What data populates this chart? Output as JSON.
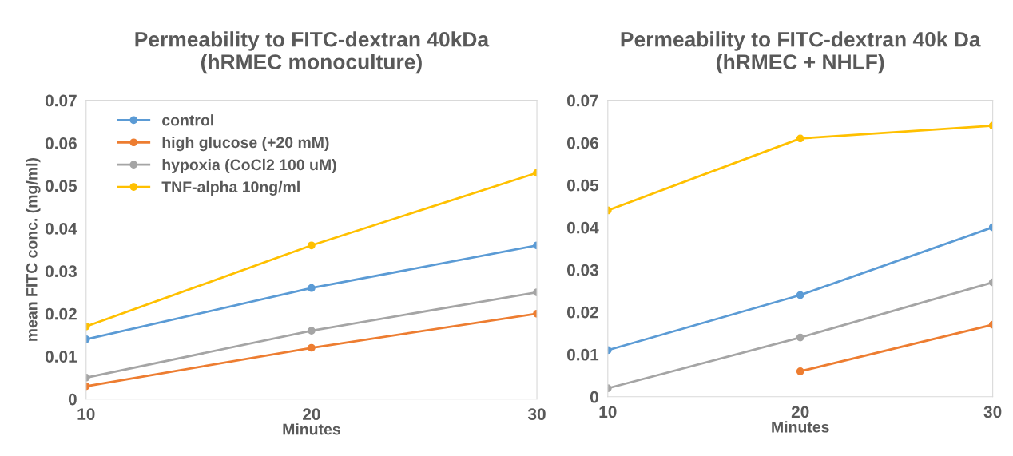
{
  "chart_data": [
    {
      "type": "line",
      "title": "Permeability to FITC-dextran 40kDa\n(hRMEC monoculture)",
      "xlabel": "Minutes",
      "ylabel": "mean FITC conc. (mg/ml)",
      "x": [
        10,
        20,
        30
      ],
      "xlim": [
        10,
        30
      ],
      "xticks": [
        10,
        20,
        30
      ],
      "ylim": [
        0,
        0.07
      ],
      "yticks": [
        0,
        0.01,
        0.02,
        0.03,
        0.04,
        0.05,
        0.06,
        0.07
      ],
      "marker": "circle",
      "legend": "top left",
      "grid": false,
      "series": [
        {
          "name": "control",
          "color": "#5b9bd5",
          "values": [
            0.014,
            0.026,
            0.036
          ]
        },
        {
          "name": "high glucose (+20 mM)",
          "color": "#ed7d31",
          "values": [
            0.003,
            0.012,
            0.02
          ]
        },
        {
          "name": "hypoxia (CoCl2 100 uM)",
          "color": "#a5a5a5",
          "values": [
            0.005,
            0.016,
            0.025
          ]
        },
        {
          "name": "TNF-alpha 10ng/ml",
          "color": "#ffc000",
          "values": [
            0.017,
            0.036,
            0.053
          ]
        }
      ]
    },
    {
      "type": "line",
      "title": "Permeability to FITC-dextran 40k Da\n(hRMEC + NHLF)",
      "xlabel": "Minutes",
      "x": [
        10,
        20,
        30
      ],
      "xlim": [
        10,
        30
      ],
      "xticks": [
        10,
        20,
        30
      ],
      "ylim": [
        0,
        0.07
      ],
      "yticks": [
        0,
        0.01,
        0.02,
        0.03,
        0.04,
        0.05,
        0.06,
        0.07
      ],
      "marker": "circle",
      "grid": false,
      "series": [
        {
          "color": "#5b9bd5",
          "values": [
            0.011,
            0.024,
            0.04
          ]
        },
        {
          "color": "#ed7d31",
          "values": [
            null,
            0.006,
            0.017
          ]
        },
        {
          "color": "#a5a5a5",
          "values": [
            0.002,
            0.014,
            0.027
          ]
        },
        {
          "color": "#ffc000",
          "values": [
            0.044,
            0.061,
            0.064
          ]
        }
      ]
    }
  ]
}
